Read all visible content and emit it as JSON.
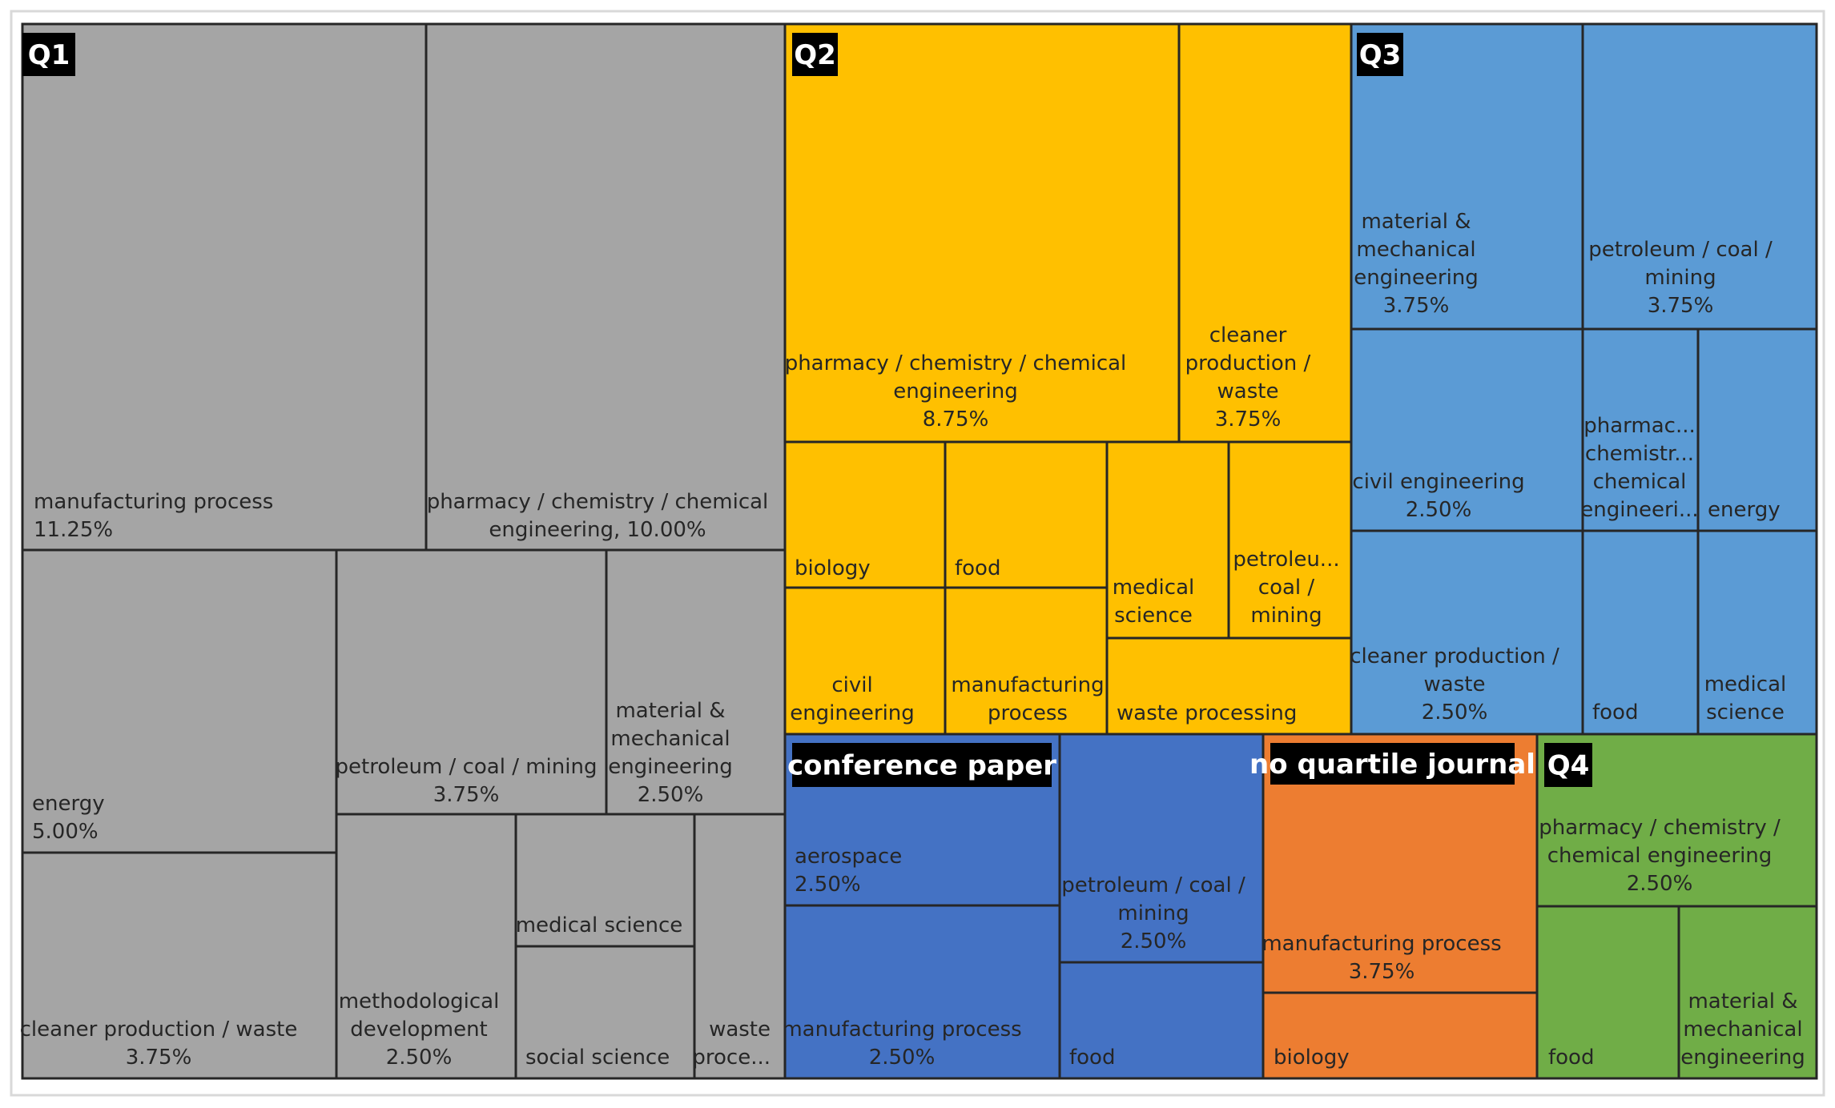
{
  "chart_data": {
    "type": "treemap",
    "title": "",
    "colors": {
      "Q1": "#a5a5a5",
      "Q2": "#ffc000",
      "Q3": "#5b9bd5",
      "conference paper": "#4472c4",
      "no quartile journal": "#ed7d31",
      "Q4": "#70ad47",
      "border": "#262626",
      "outer_frame": "#d9d9d9",
      "label_bg": "#000000",
      "label_text": "#ffffff",
      "cell_text_dark": "#262626"
    },
    "groups": [
      {
        "name": "Q1",
        "items": [
          {
            "lines": [
              "manufacturing process",
              "11.25%"
            ]
          },
          {
            "lines": [
              "pharmacy / chemistry / chemical",
              "engineering, 10.00%"
            ]
          },
          {
            "lines": [
              "energy",
              "5.00%"
            ]
          },
          {
            "lines": [
              "petroleum / coal / mining",
              "3.75%"
            ]
          },
          {
            "lines": [
              "material &",
              "mechanical",
              "engineering",
              "2.50%"
            ]
          },
          {
            "lines": [
              "cleaner production / waste",
              "3.75%"
            ]
          },
          {
            "lines": [
              "methodological",
              "development",
              "2.50%"
            ]
          },
          {
            "lines": [
              "medical science"
            ]
          },
          {
            "lines": [
              "social science"
            ]
          },
          {
            "lines": [
              "waste",
              "proce..."
            ]
          }
        ]
      },
      {
        "name": "Q2",
        "items": [
          {
            "lines": [
              "pharmacy / chemistry / chemical",
              "engineering",
              "8.75%"
            ]
          },
          {
            "lines": [
              "cleaner",
              "production /",
              "waste",
              "3.75%"
            ]
          },
          {
            "lines": [
              "biology"
            ]
          },
          {
            "lines": [
              "food"
            ]
          },
          {
            "lines": [
              "medical",
              "science"
            ]
          },
          {
            "lines": [
              "petroleu...",
              "coal /",
              "mining"
            ]
          },
          {
            "lines": [
              "civil",
              "engineering"
            ]
          },
          {
            "lines": [
              "manufacturing",
              "process"
            ]
          },
          {
            "lines": [
              "waste processing"
            ]
          }
        ]
      },
      {
        "name": "Q3",
        "items": [
          {
            "lines": [
              "material &",
              "mechanical",
              "engineering",
              "3.75%"
            ]
          },
          {
            "lines": [
              "petroleum / coal /",
              "mining",
              "3.75%"
            ]
          },
          {
            "lines": [
              "civil engineering",
              "2.50%"
            ]
          },
          {
            "lines": [
              "pharmac...",
              "chemistr...",
              "chemical",
              "engineeri..."
            ]
          },
          {
            "lines": [
              "energy"
            ]
          },
          {
            "lines": [
              "cleaner production /",
              "waste",
              "2.50%"
            ]
          },
          {
            "lines": [
              "food"
            ]
          },
          {
            "lines": [
              "medical",
              "science"
            ]
          }
        ]
      },
      {
        "name": "conference paper",
        "items": [
          {
            "lines": [
              "aerospace",
              "2.50%"
            ]
          },
          {
            "lines": [
              "manufacturing process",
              "2.50%"
            ]
          },
          {
            "lines": [
              "petroleum / coal /",
              "mining",
              "2.50%"
            ]
          },
          {
            "lines": [
              "food"
            ]
          }
        ]
      },
      {
        "name": "no quartile journal",
        "items": [
          {
            "lines": [
              "manufacturing process",
              "3.75%"
            ]
          },
          {
            "lines": [
              "biology"
            ]
          }
        ]
      },
      {
        "name": "Q4",
        "items": [
          {
            "lines": [
              "pharmacy / chemistry /",
              "chemical engineering",
              "2.50%"
            ]
          },
          {
            "lines": [
              "food"
            ]
          },
          {
            "lines": [
              "material &",
              "mechanical",
              "engineering"
            ]
          }
        ]
      }
    ]
  }
}
